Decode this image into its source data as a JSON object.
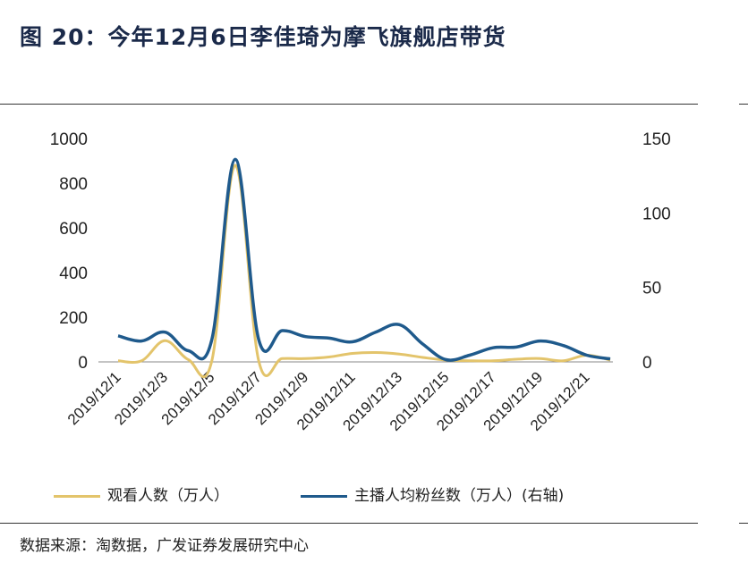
{
  "title": "图 20：今年12月6日李佳琦为摩飞旗舰店带货",
  "source": "数据来源：淘数据，广发证券发展研究中心",
  "colors": {
    "series1": "#e3c46b",
    "series2": "#1f5a8c"
  },
  "chart_data": {
    "type": "line",
    "dual_axis": true,
    "x": [
      "2019/12/1",
      "2019/12/2",
      "2019/12/3",
      "2019/12/4",
      "2019/12/5",
      "2019/12/6",
      "2019/12/7",
      "2019/12/8",
      "2019/12/9",
      "2019/12/10",
      "2019/12/11",
      "2019/12/12",
      "2019/12/13",
      "2019/12/14",
      "2019/12/15",
      "2019/12/16",
      "2019/12/17",
      "2019/12/18",
      "2019/12/19",
      "2019/12/20",
      "2019/12/21",
      "2019/12/22"
    ],
    "x_tick_labels": [
      "2019/12/1",
      "2019/12/3",
      "2019/12/5",
      "2019/12/7",
      "2019/12/9",
      "2019/12/11",
      "2019/12/13",
      "2019/12/15",
      "2019/12/17",
      "2019/12/19",
      "2019/12/21"
    ],
    "y_left": {
      "min": 0,
      "max": 1000,
      "ticks": [
        0,
        200,
        400,
        600,
        800,
        1000
      ]
    },
    "y_right": {
      "min": 0,
      "max": 150,
      "ticks": [
        0,
        50,
        100,
        150
      ]
    },
    "series": [
      {
        "name": "观看人数（万人）",
        "axis": "left",
        "values": [
          5,
          5,
          95,
          10,
          5,
          880,
          5,
          15,
          15,
          22,
          38,
          42,
          35,
          20,
          8,
          5,
          5,
          12,
          15,
          5,
          30,
          8
        ]
      },
      {
        "name": "主播人均粉丝数（万人）(右轴)",
        "axis": "right",
        "values": [
          17.5,
          14,
          20,
          7.5,
          15,
          136,
          15,
          21,
          17,
          16,
          13.5,
          20,
          25,
          12,
          1.5,
          4.5,
          9.5,
          10,
          14,
          11,
          4.5,
          2
        ]
      }
    ],
    "legend": "bottom",
    "grid": false
  }
}
